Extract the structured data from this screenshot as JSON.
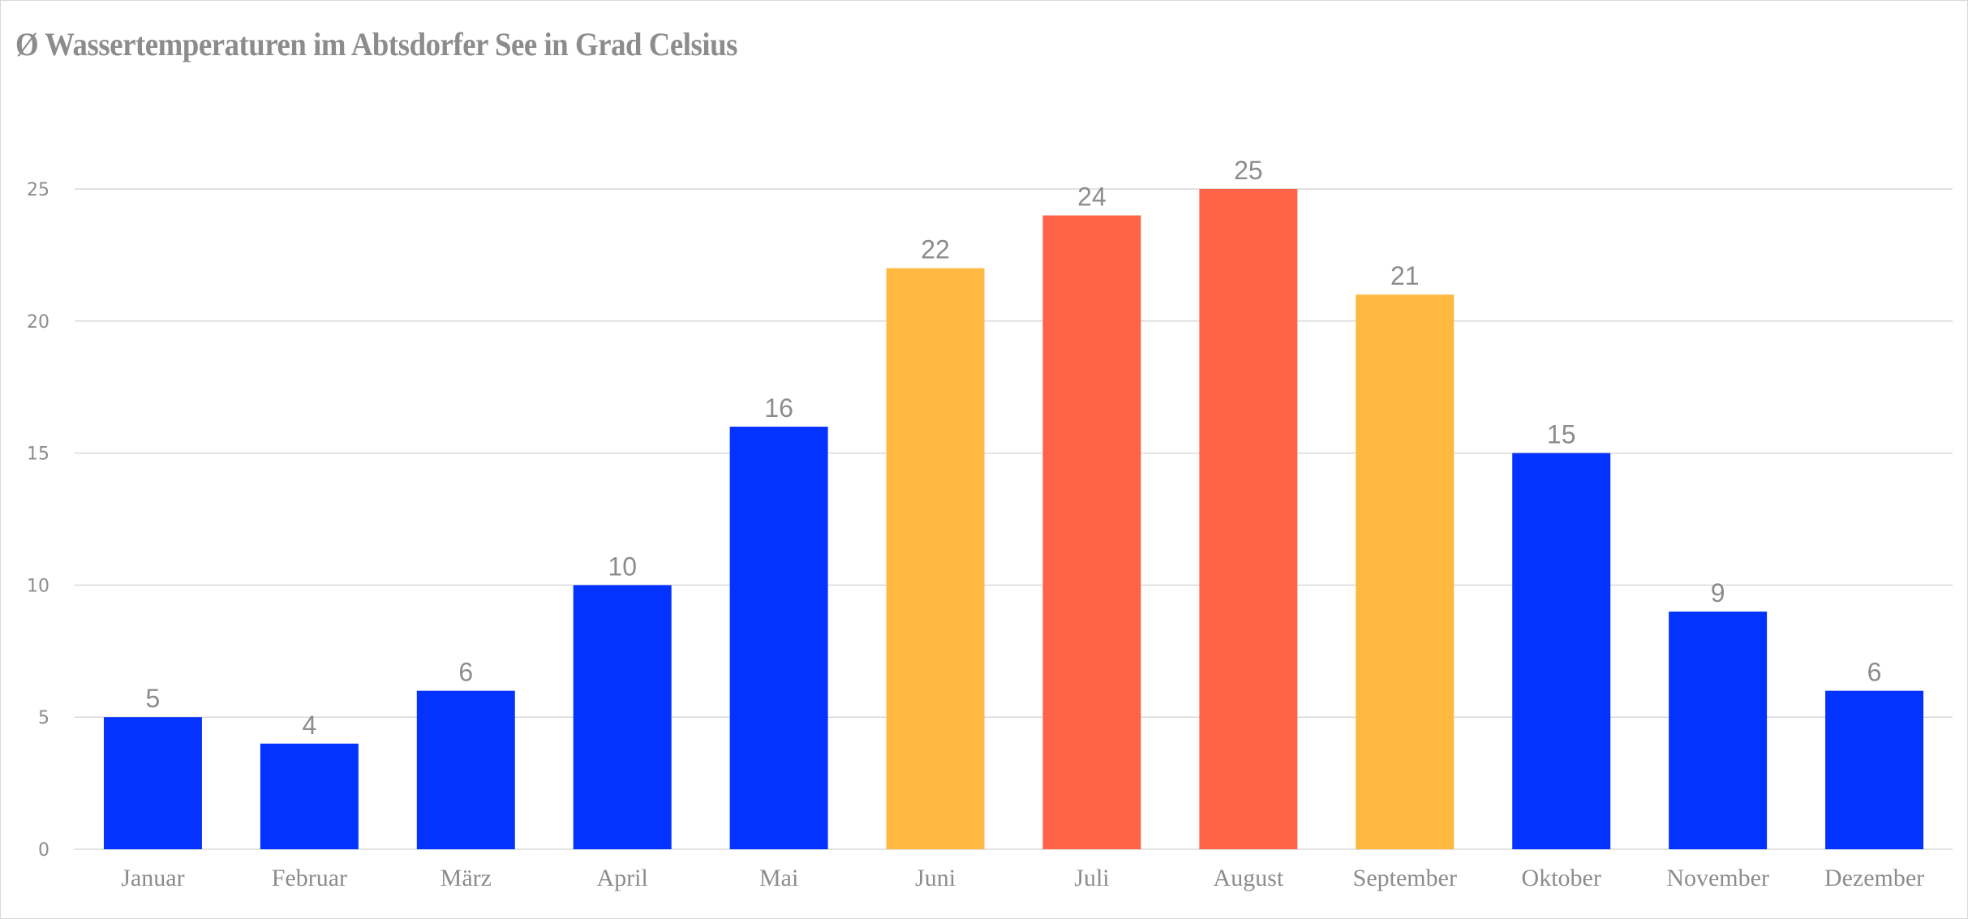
{
  "chart_data": {
    "type": "bar",
    "title": "Ø Wassertemperaturen im Abtsdorfer See in Grad Celsius",
    "xlabel": "",
    "ylabel": "",
    "ylim": [
      0,
      25
    ],
    "yticks": [
      0,
      5,
      10,
      15,
      20,
      25
    ],
    "grid": true,
    "legend": "none",
    "categories": [
      "Januar",
      "Februar",
      "März",
      "April",
      "Mai",
      "Juni",
      "Juli",
      "August",
      "September",
      "Oktober",
      "November",
      "Dezember"
    ],
    "values": [
      5,
      4,
      6,
      10,
      16,
      22,
      24,
      25,
      21,
      15,
      9,
      6
    ],
    "colors": [
      "#0433ff",
      "#0433ff",
      "#0433ff",
      "#0433ff",
      "#0433ff",
      "#ffb941",
      "#ff6449",
      "#ff6449",
      "#ffb941",
      "#0433ff",
      "#0433ff",
      "#0433ff"
    ]
  }
}
